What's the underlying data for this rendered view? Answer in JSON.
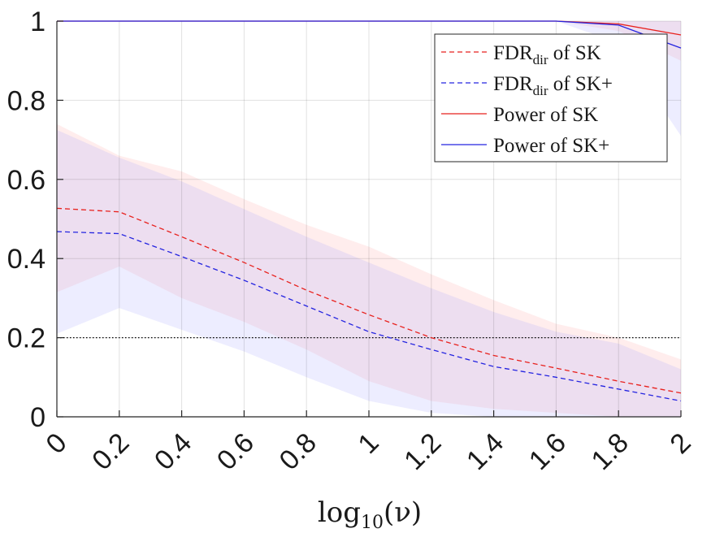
{
  "chart_data": {
    "type": "line",
    "x": [
      0,
      0.2,
      0.4,
      0.6,
      0.8,
      1,
      1.2,
      1.4,
      1.6,
      1.8,
      2
    ],
    "xlim": [
      0,
      2
    ],
    "ylim": [
      0,
      1
    ],
    "x_ticks": [
      "0",
      "0.2",
      "0.4",
      "0.6",
      "0.8",
      "1",
      "1.2",
      "1.4",
      "1.6",
      "1.8",
      "2"
    ],
    "y_ticks": [
      "0",
      "0.2",
      "0.4",
      "0.6",
      "0.8",
      "1"
    ],
    "xlabel": "log10(ν)",
    "xlabel_base": "log",
    "xlabel_sub": "10",
    "xlabel_arg": "(ν)",
    "ylabel": "",
    "grid": true,
    "legend_position": "top-right",
    "reference_line": {
      "y": 0.2,
      "style": "dotted",
      "color": "#000000"
    },
    "series": [
      {
        "name": "FDR_dir of SK",
        "label_main": "FDR",
        "label_sub": "dir",
        "label_rest": " of SK",
        "color": "#e8211d",
        "style": "dashed",
        "values": [
          0.527,
          0.518,
          0.455,
          0.39,
          0.32,
          0.258,
          0.2,
          0.155,
          0.123,
          0.09,
          0.06
        ],
        "band_upper": [
          0.74,
          0.66,
          0.62,
          0.55,
          0.485,
          0.43,
          0.36,
          0.295,
          0.235,
          0.2,
          0.145
        ],
        "band_lower": [
          0.315,
          0.38,
          0.3,
          0.24,
          0.17,
          0.09,
          0.04,
          0.02,
          0.01,
          0.0,
          0.0
        ],
        "band_color": "#ff9999"
      },
      {
        "name": "FDR_dir of SK+",
        "label_main": "FDR",
        "label_sub": "dir",
        "label_rest": " of SK+",
        "color": "#2424e0",
        "style": "dashed",
        "values": [
          0.468,
          0.463,
          0.405,
          0.345,
          0.28,
          0.215,
          0.17,
          0.127,
          0.1,
          0.07,
          0.04
        ],
        "band_upper": [
          0.725,
          0.655,
          0.595,
          0.525,
          0.455,
          0.39,
          0.325,
          0.265,
          0.215,
          0.185,
          0.12
        ],
        "band_lower": [
          0.21,
          0.275,
          0.22,
          0.165,
          0.1,
          0.04,
          0.01,
          0.0,
          0.0,
          0.0,
          0.0
        ],
        "band_color": "#9999ff"
      },
      {
        "name": "Power of SK",
        "label_main": "Power of SK",
        "label_sub": "",
        "label_rest": "",
        "color": "#e8211d",
        "style": "solid",
        "values": [
          1,
          1,
          1,
          1,
          1,
          1,
          1,
          1,
          1,
          0.993,
          0.965
        ],
        "band_upper": [
          1,
          1,
          1,
          1,
          1,
          1,
          1,
          1,
          1,
          1,
          1
        ],
        "band_lower": [
          1,
          1,
          1,
          1,
          1,
          1,
          1,
          1,
          1,
          0.975,
          0.9
        ],
        "band_color": "#ff9999"
      },
      {
        "name": "Power of SK+",
        "label_main": "Power of SK+",
        "label_sub": "",
        "label_rest": "",
        "color": "#2424e0",
        "style": "solid",
        "values": [
          1,
          1,
          1,
          1,
          1,
          1,
          1,
          1,
          1,
          0.99,
          0.932
        ],
        "band_upper": [
          1,
          1,
          1,
          1,
          1,
          1,
          1,
          1,
          1,
          1,
          1
        ],
        "band_lower": [
          1,
          1,
          1,
          1,
          1,
          1,
          1,
          1,
          1,
          0.945,
          0.71
        ],
        "band_color": "#9999ff"
      }
    ]
  }
}
